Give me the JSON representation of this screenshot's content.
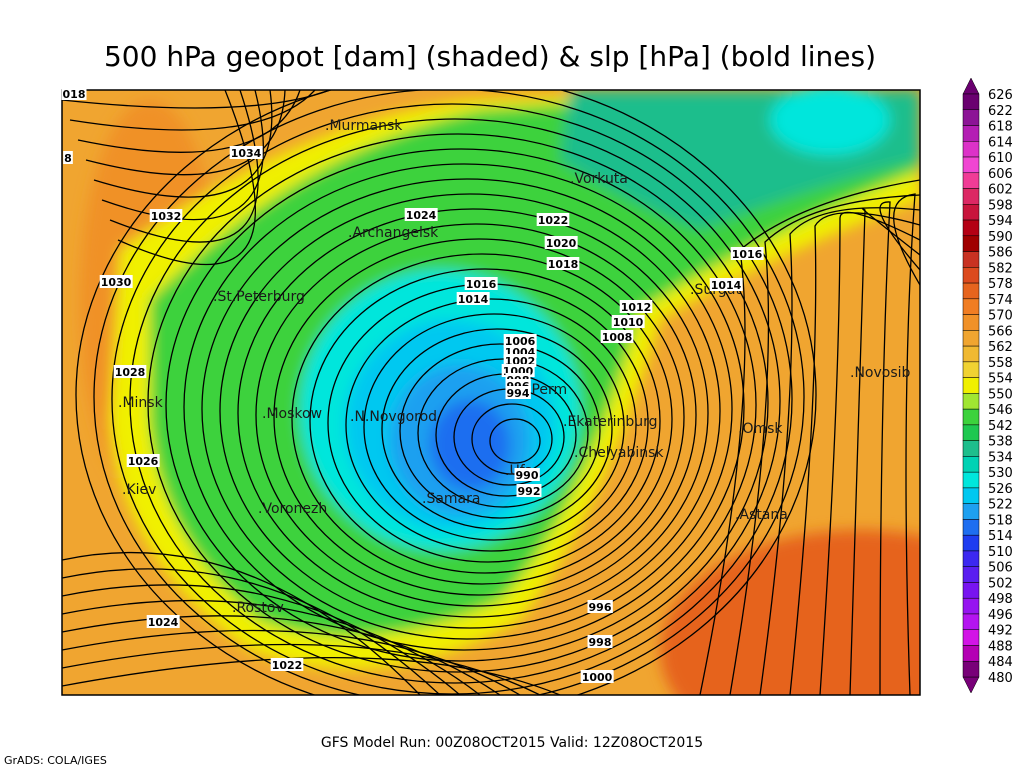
{
  "header": {
    "title": "500 hPa geopot [dam] (shaded) & slp [hPa] (bold lines)"
  },
  "footer": {
    "run": "GFS Model Run: 00Z08OCT2015  Valid: 12Z08OCT2015",
    "credit": "GrADS: COLA/IGES"
  },
  "cities": [
    ".Murmansk",
    ".Vorkuta",
    ".Archangelsk",
    ".St.Peterburg",
    ".Minsk",
    ".Moskow",
    ".N.Novgorod",
    ".Perm",
    ".Ekaterinburg",
    ".Chelyabinsk",
    ".Ufa",
    ".Kiev",
    ".Voronezh",
    ".Samara",
    ".Rostov",
    ".Omsk",
    ".Novosib",
    ".Astana",
    ".Surgut"
  ],
  "isobar_labels": [
    "018",
    "8",
    "1034",
    "1032",
    "1030",
    "1028",
    "1026",
    "1024",
    "1022",
    "1024",
    "1022",
    "1020",
    "1018",
    "1016",
    "1014",
    "1016",
    "1014",
    "1012",
    "1010",
    "1008",
    "1006",
    "1004",
    "1002",
    "1000",
    "998",
    "996",
    "994",
    "990",
    "992",
    "996",
    "998",
    "1000"
  ],
  "colorbar": {
    "levels": [
      626,
      622,
      618,
      614,
      610,
      606,
      602,
      598,
      594,
      590,
      586,
      582,
      578,
      574,
      570,
      566,
      562,
      558,
      554,
      550,
      546,
      542,
      538,
      534,
      530,
      526,
      522,
      518,
      514,
      510,
      506,
      502,
      498,
      496,
      492,
      488,
      484,
      480
    ],
    "colors": [
      "#6a0070",
      "#8c1496",
      "#b41eb4",
      "#dc32c8",
      "#f046d2",
      "#f03c96",
      "#dc2864",
      "#c8143c",
      "#b40014",
      "#a00000",
      "#c83222",
      "#dc4a1e",
      "#e6641e",
      "#f07d23",
      "#f09128",
      "#f0a530",
      "#f0b932",
      "#f0d232",
      "#f0f000",
      "#a0e632",
      "#3cd23c",
      "#1ec850",
      "#1ebe8c",
      "#00d2b4",
      "#00e6dc",
      "#00c8f0",
      "#1ea0f0",
      "#1e6ef0",
      "#1e3cf0",
      "#3c28f0",
      "#5a1ef0",
      "#7814f0",
      "#9614f0",
      "#b414f0",
      "#d214e6",
      "#b400b4",
      "#780078"
    ]
  }
}
